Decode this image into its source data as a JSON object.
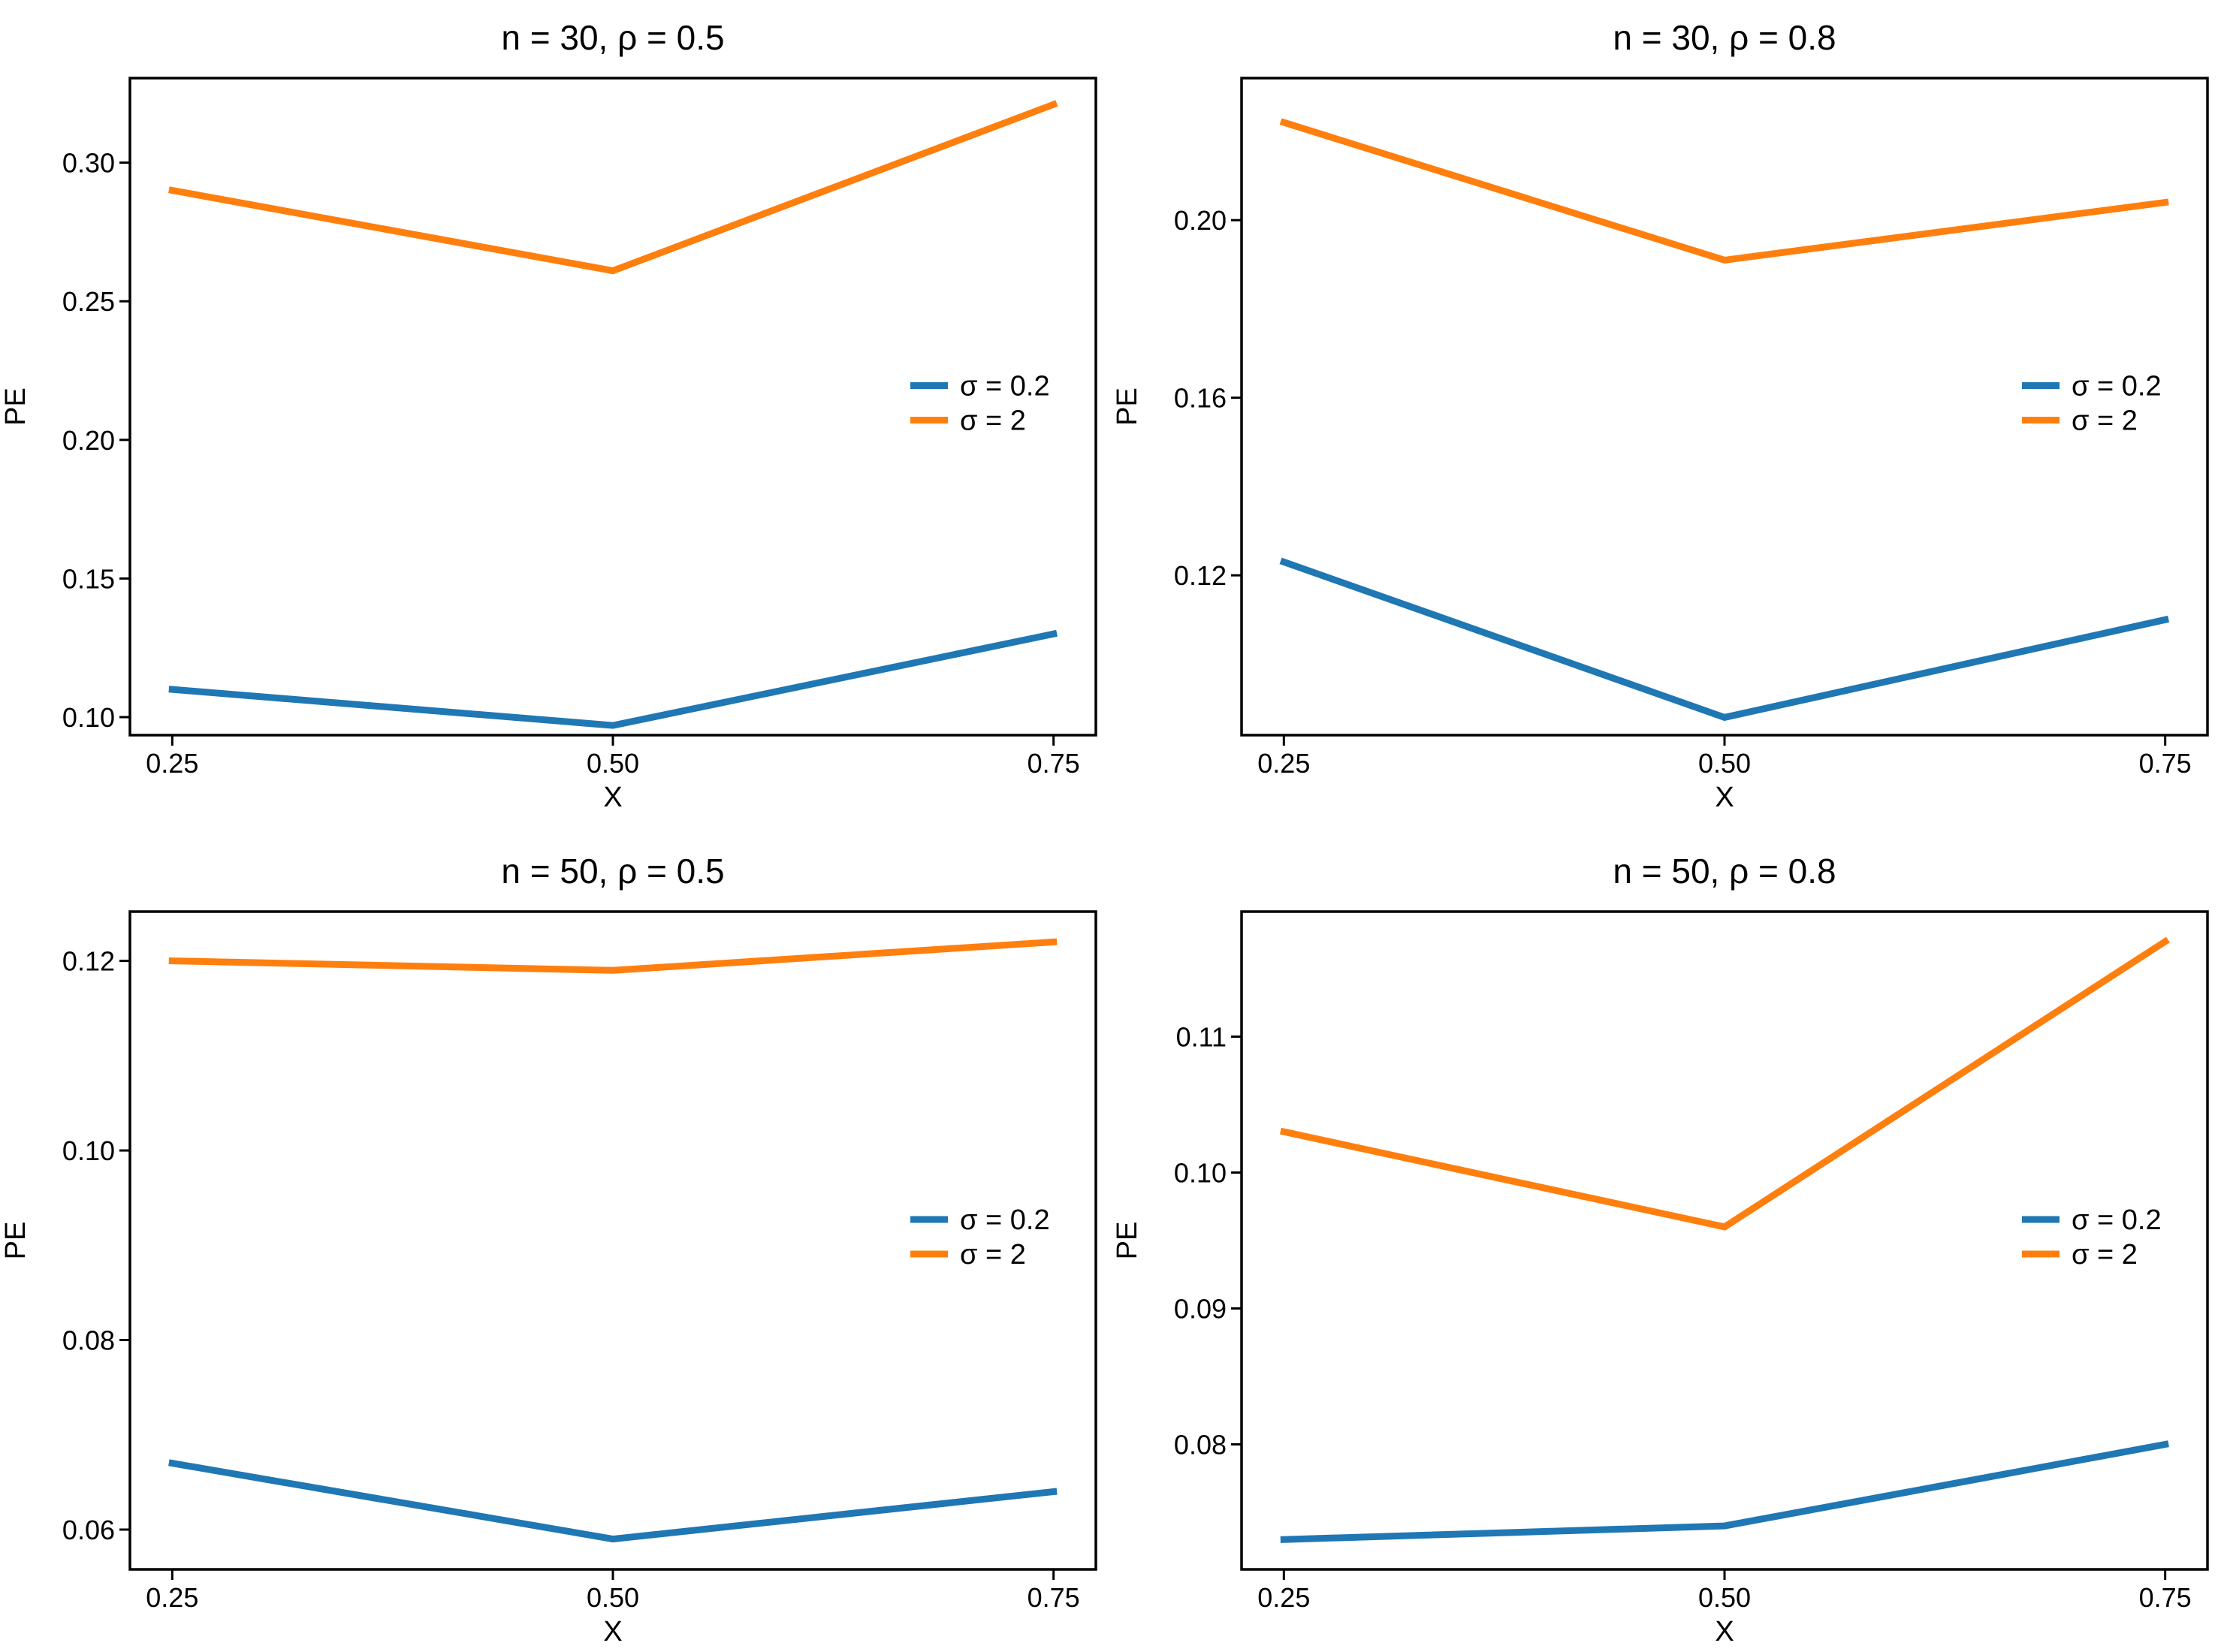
{
  "colors": {
    "sigma_0_2": "#1f77b4",
    "sigma_2": "#ff7f0e"
  },
  "chart_data": [
    {
      "type": "line",
      "title": "n = 30, ρ = 0.5",
      "xlabel": "X",
      "ylabel": "PE",
      "x": [
        0.25,
        0.5,
        0.75
      ],
      "xticks": [
        "0.25",
        "0.50",
        "0.75"
      ],
      "yticks": [
        0.1,
        0.15,
        0.2,
        0.25,
        0.3
      ],
      "ytick_labels": [
        "0.10",
        "0.15",
        "0.20",
        "0.25",
        "0.30"
      ],
      "xlim": [
        0.226,
        0.774
      ],
      "ylim": [
        0.0935,
        0.3305
      ],
      "legend_loc": "center-right",
      "series": [
        {
          "name": "σ = 0.2",
          "color": "#1f77b4",
          "values": [
            0.11,
            0.097,
            0.13
          ]
        },
        {
          "name": "σ = 2",
          "color": "#ff7f0e",
          "values": [
            0.29,
            0.261,
            0.321
          ]
        }
      ]
    },
    {
      "type": "line",
      "title": "n = 30, ρ = 0.8",
      "xlabel": "X",
      "ylabel": "PE",
      "x": [
        0.25,
        0.5,
        0.75
      ],
      "xticks": [
        "0.25",
        "0.50",
        "0.75"
      ],
      "yticks": [
        0.12,
        0.16,
        0.2
      ],
      "ytick_labels": [
        "0.12",
        "0.16",
        "0.20"
      ],
      "xlim": [
        0.226,
        0.774
      ],
      "ylim": [
        0.084,
        0.232
      ],
      "legend_loc": "center-right",
      "series": [
        {
          "name": "σ = 0.2",
          "color": "#1f77b4",
          "values": [
            0.123,
            0.088,
            0.11
          ]
        },
        {
          "name": "σ = 2",
          "color": "#ff7f0e",
          "values": [
            0.222,
            0.191,
            0.204
          ]
        }
      ]
    },
    {
      "type": "line",
      "title": "n = 50, ρ = 0.5",
      "xlabel": "X",
      "ylabel": "PE",
      "x": [
        0.25,
        0.5,
        0.75
      ],
      "xticks": [
        "0.25",
        "0.50",
        "0.75"
      ],
      "yticks": [
        0.06,
        0.08,
        0.1,
        0.12
      ],
      "ytick_labels": [
        "0.06",
        "0.08",
        "0.10",
        "0.12"
      ],
      "xlim": [
        0.226,
        0.774
      ],
      "ylim": [
        0.0558,
        0.1252
      ],
      "legend_loc": "center-right",
      "series": [
        {
          "name": "σ = 0.2",
          "color": "#1f77b4",
          "values": [
            0.067,
            0.059,
            0.064
          ]
        },
        {
          "name": "σ = 2",
          "color": "#ff7f0e",
          "values": [
            0.12,
            0.119,
            0.122
          ]
        }
      ]
    },
    {
      "type": "line",
      "title": "n = 50, ρ = 0.8",
      "xlabel": "X",
      "ylabel": "PE",
      "x": [
        0.25,
        0.5,
        0.75
      ],
      "xticks": [
        "0.25",
        "0.50",
        "0.75"
      ],
      "yticks": [
        0.08,
        0.09,
        0.1,
        0.11
      ],
      "ytick_labels": [
        "0.08",
        "0.09",
        "0.10",
        "0.11"
      ],
      "xlim": [
        0.226,
        0.774
      ],
      "ylim": [
        0.0708,
        0.1192
      ],
      "legend_loc": "center-right",
      "series": [
        {
          "name": "σ = 0.2",
          "color": "#1f77b4",
          "values": [
            0.073,
            0.074,
            0.08
          ]
        },
        {
          "name": "σ = 2",
          "color": "#ff7f0e",
          "values": [
            0.103,
            0.096,
            0.117
          ]
        }
      ]
    }
  ]
}
